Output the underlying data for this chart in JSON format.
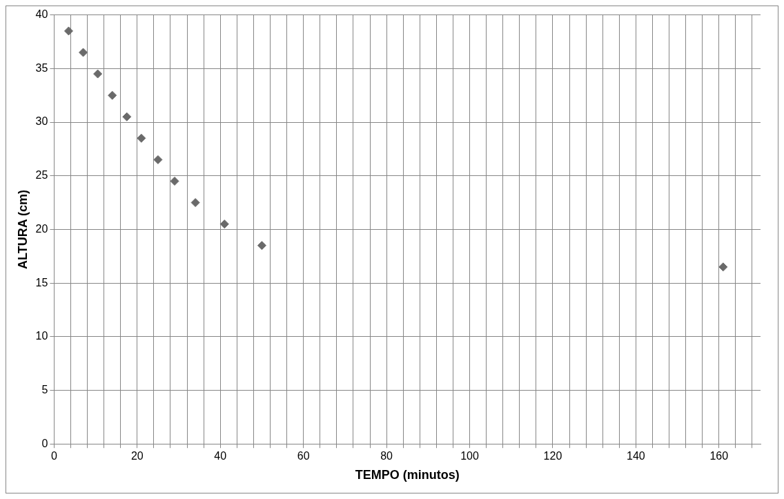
{
  "chart_data": {
    "type": "scatter",
    "xlabel": "TEMPO (minutos)",
    "ylabel": "ALTURA (cm)",
    "x": [
      3.5,
      7,
      10.5,
      14,
      17.5,
      21,
      25,
      29,
      34,
      41,
      50,
      161
    ],
    "series": [
      {
        "color": "#6a6a6a",
        "values": [
          38.5,
          36.5,
          34.5,
          32.5,
          30.5,
          28.5,
          26.5,
          24.5,
          22.5,
          20.5,
          18.5,
          16.5
        ]
      }
    ],
    "xlim": [
      0,
      170
    ],
    "xticks": [
      0,
      {
        "value": 4,
        "label": null
      },
      {
        "value": 8,
        "label": null
      },
      {
        "value": 12,
        "label": null
      },
      {
        "value": 16,
        "label": null
      },
      20,
      {
        "value": 24,
        "label": null
      },
      {
        "value": 28,
        "label": null
      },
      {
        "value": 32,
        "label": null
      },
      {
        "value": 36,
        "label": null
      },
      40,
      {
        "value": 44,
        "label": null
      },
      {
        "value": 48,
        "label": null
      },
      {
        "value": 52,
        "label": null
      },
      {
        "value": 56,
        "label": null
      },
      60,
      {
        "value": 64,
        "label": null
      },
      {
        "value": 68,
        "label": null
      },
      {
        "value": 72,
        "label": null
      },
      {
        "value": 76,
        "label": null
      },
      80,
      {
        "value": 84,
        "label": null
      },
      {
        "value": 88,
        "label": null
      },
      {
        "value": 92,
        "label": null
      },
      {
        "value": 96,
        "label": null
      },
      100,
      {
        "value": 104,
        "label": null
      },
      {
        "value": 108,
        "label": null
      },
      {
        "value": 112,
        "label": null
      },
      {
        "value": 116,
        "label": null
      },
      120,
      {
        "value": 124,
        "label": null
      },
      {
        "value": 128,
        "label": null
      },
      {
        "value": 132,
        "label": null
      },
      {
        "value": 136,
        "label": null
      },
      140,
      {
        "value": 144,
        "label": null
      },
      {
        "value": 148,
        "label": null
      },
      {
        "value": 152,
        "label": null
      },
      {
        "value": 156,
        "label": null
      },
      160,
      {
        "value": 164,
        "label": null
      },
      {
        "value": 168,
        "label": null
      }
    ],
    "ylim": [
      0,
      40
    ],
    "yticks": [
      0,
      5,
      10,
      15,
      20,
      25,
      30,
      35,
      40
    ],
    "grid": true,
    "legend": false,
    "marker": "diamond"
  }
}
